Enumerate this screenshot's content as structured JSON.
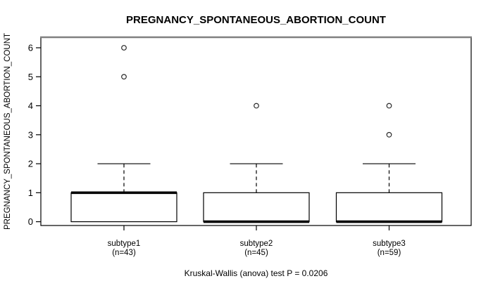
{
  "title": "PREGNANCY_SPONTANEOUS_ABORTION_COUNT",
  "caption": "Kruskal-Wallis (anova) test P = 0.0206",
  "chart_data": {
    "type": "boxplot",
    "title": "PREGNANCY_SPONTANEOUS_ABORTION_COUNT",
    "xlabel": "",
    "ylabel": "PREGNANCY_SPONTANEOUS_ABORTION_COUNT",
    "annotation": "Kruskal-Wallis (anova) test P = 0.0206",
    "y_axis": {
      "min": 0,
      "max": 6,
      "ticks": [
        0,
        1,
        2,
        3,
        4,
        5,
        6
      ]
    },
    "grid": false,
    "legend": "none",
    "groups": [
      {
        "label": "subtype1",
        "sublabel": "(n=43)",
        "n": 43,
        "min": 0,
        "q1": 0,
        "median": 1,
        "q3": 1,
        "whisker_low": 0,
        "whisker_high": 2,
        "outliers": [
          5,
          6
        ]
      },
      {
        "label": "subtype2",
        "sublabel": "(n=45)",
        "n": 45,
        "min": 0,
        "q1": 0,
        "median": 0,
        "q3": 1,
        "whisker_low": 0,
        "whisker_high": 2,
        "outliers": [
          4
        ]
      },
      {
        "label": "subtype3",
        "sublabel": "(n=59)",
        "n": 59,
        "min": 0,
        "q1": 0,
        "median": 0,
        "q3": 1,
        "whisker_low": 0,
        "whisker_high": 2,
        "outliers": [
          3,
          4
        ]
      }
    ],
    "colors": {
      "line": "#000000",
      "box_fill": "#ffffff",
      "frame_top": "#808080",
      "outlier_stroke": "#2a2a2a"
    }
  }
}
